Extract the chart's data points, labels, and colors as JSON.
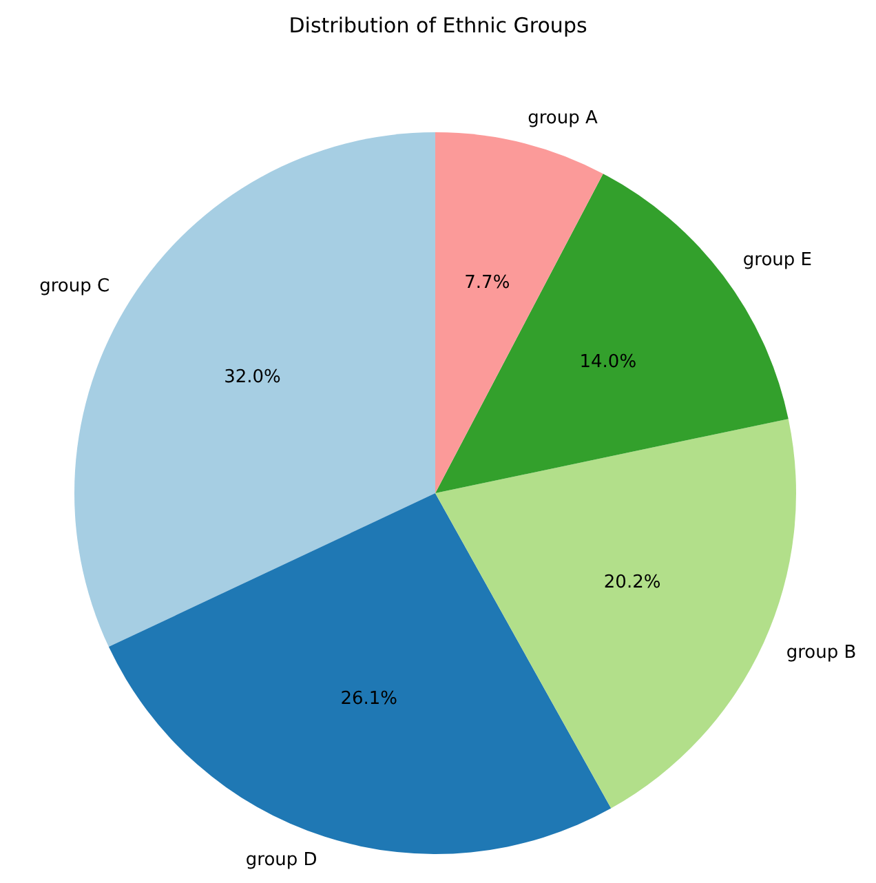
{
  "chart_data": {
    "type": "pie",
    "title": "Distribution of Ethnic Groups",
    "categories": [
      "group C",
      "group D",
      "group B",
      "group E",
      "group A"
    ],
    "values": [
      32.0,
      26.1,
      20.2,
      14.0,
      7.7
    ],
    "colors": [
      "#a6cee3",
      "#1f78b4",
      "#b2df8a",
      "#33a02c",
      "#fb9a99"
    ],
    "value_labels": [
      "32.0%",
      "26.1%",
      "20.2%",
      "14.0%",
      "7.7%"
    ],
    "legend": false
  }
}
